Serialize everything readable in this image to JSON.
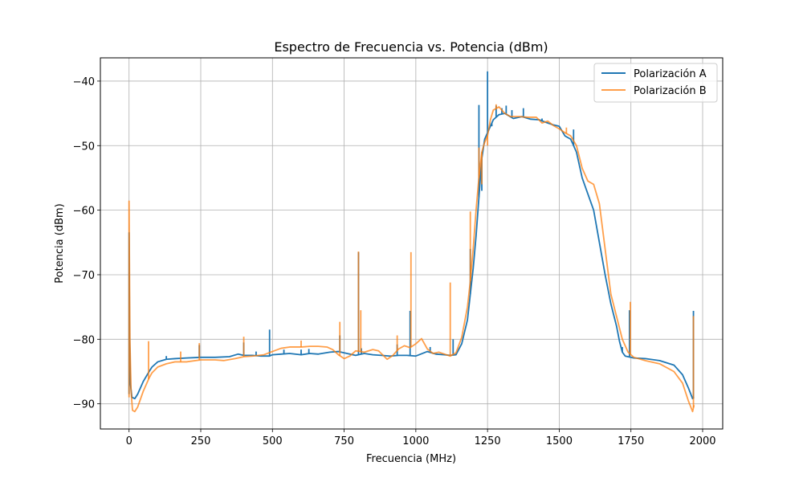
{
  "chart_data": {
    "type": "line",
    "title": "Espectro de Frecuencia vs. Potencia (dBm)",
    "xlabel": "Frecuencia (MHz)",
    "ylabel": "Potencia (dBm)",
    "xlim": [
      -100,
      2070
    ],
    "ylim": [
      -93.9,
      -36.4
    ],
    "xticks": [
      0,
      250,
      500,
      750,
      1000,
      1250,
      1500,
      1750,
      2000
    ],
    "yticks": [
      -90,
      -80,
      -70,
      -60,
      -50,
      -40
    ],
    "xtick_labels": [
      "0",
      "250",
      "500",
      "750",
      "1000",
      "1250",
      "1500",
      "1750",
      "2000"
    ],
    "ytick_labels": [
      "−90",
      "−80",
      "−70",
      "−60",
      "−50",
      "−40"
    ],
    "grid": true,
    "legend_position": "top-right",
    "series": [
      {
        "name": "Polarización A",
        "color": "#1f77b4",
        "opacity": 1.0,
        "points": [
          [
            0,
            -88.5
          ],
          [
            0,
            -63.5
          ],
          [
            2,
            -80
          ],
          [
            5,
            -87
          ],
          [
            10,
            -89
          ],
          [
            20,
            -89.2
          ],
          [
            30,
            -88.5
          ],
          [
            50,
            -86.5
          ],
          [
            70,
            -85
          ],
          [
            80,
            -84.3
          ],
          [
            100,
            -83.5
          ],
          [
            130,
            -83.1
          ],
          [
            160,
            -83
          ],
          [
            200,
            -82.9
          ],
          [
            250,
            -82.8
          ],
          [
            300,
            -82.8
          ],
          [
            350,
            -82.7
          ],
          [
            380,
            -82.3
          ],
          [
            400,
            -82.5
          ],
          [
            430,
            -82.5
          ],
          [
            460,
            -82.6
          ],
          [
            490,
            -82.6
          ],
          [
            500,
            -82.4
          ],
          [
            530,
            -82.3
          ],
          [
            560,
            -82.2
          ],
          [
            600,
            -82.4
          ],
          [
            630,
            -82.2
          ],
          [
            660,
            -82.3
          ],
          [
            700,
            -82
          ],
          [
            730,
            -81.9
          ],
          [
            760,
            -82.2
          ],
          [
            790,
            -82.5
          ],
          [
            820,
            -82.2
          ],
          [
            850,
            -82.4
          ],
          [
            880,
            -82.5
          ],
          [
            910,
            -82.6
          ],
          [
            940,
            -82.5
          ],
          [
            970,
            -82.5
          ],
          [
            1000,
            -82.6
          ],
          [
            1040,
            -81.9
          ],
          [
            1070,
            -82.3
          ],
          [
            1100,
            -82.4
          ],
          [
            1120,
            -82.5
          ],
          [
            1140,
            -82.4
          ],
          [
            1160,
            -80.7
          ],
          [
            1180,
            -77
          ],
          [
            1190,
            -73
          ],
          [
            1200,
            -69
          ],
          [
            1210,
            -64
          ],
          [
            1220,
            -58
          ],
          [
            1230,
            -52
          ],
          [
            1240,
            -49
          ],
          [
            1250,
            -48
          ],
          [
            1260,
            -47
          ],
          [
            1270,
            -46
          ],
          [
            1290,
            -45.2
          ],
          [
            1310,
            -45
          ],
          [
            1340,
            -45.8
          ],
          [
            1370,
            -45.5
          ],
          [
            1400,
            -45.9
          ],
          [
            1430,
            -46
          ],
          [
            1460,
            -46.5
          ],
          [
            1480,
            -46.8
          ],
          [
            1500,
            -47
          ],
          [
            1520,
            -48.5
          ],
          [
            1540,
            -49
          ],
          [
            1560,
            -51
          ],
          [
            1580,
            -55
          ],
          [
            1600,
            -57.5
          ],
          [
            1620,
            -60
          ],
          [
            1640,
            -65
          ],
          [
            1660,
            -70
          ],
          [
            1680,
            -74.5
          ],
          [
            1700,
            -78
          ],
          [
            1710,
            -80.3
          ],
          [
            1720,
            -82
          ],
          [
            1730,
            -82.6
          ],
          [
            1760,
            -82.9
          ],
          [
            1800,
            -83
          ],
          [
            1850,
            -83.3
          ],
          [
            1900,
            -84
          ],
          [
            1930,
            -85.5
          ],
          [
            1950,
            -87.5
          ],
          [
            1965,
            -89.2
          ],
          [
            1970,
            -89
          ]
        ],
        "spikes": [
          [
            130,
            -82.6
          ],
          [
            245,
            -80.9
          ],
          [
            400,
            -80.5
          ],
          [
            443,
            -81.9
          ],
          [
            490,
            -78.5
          ],
          [
            540,
            -81.6
          ],
          [
            600,
            -81.6
          ],
          [
            627,
            -81.5
          ],
          [
            735,
            -79.4
          ],
          [
            800,
            -66.5
          ],
          [
            810,
            -81.4
          ],
          [
            935,
            -80.8
          ],
          [
            980,
            -75.6
          ],
          [
            1050,
            -81.2
          ],
          [
            1130,
            -80
          ],
          [
            1190,
            -66
          ],
          [
            1220,
            -43.7
          ],
          [
            1230,
            -57
          ],
          [
            1250,
            -38.5
          ],
          [
            1265,
            -47
          ],
          [
            1280,
            -43.8
          ],
          [
            1300,
            -44.2
          ],
          [
            1315,
            -43.8
          ],
          [
            1335,
            -44.5
          ],
          [
            1375,
            -44.2
          ],
          [
            1440,
            -45.8
          ],
          [
            1550,
            -47.5
          ],
          [
            1720,
            -81.2
          ],
          [
            1745,
            -75.5
          ],
          [
            1968,
            -75.6
          ]
        ]
      },
      {
        "name": "Polarización B",
        "color": "#ff7f0e",
        "opacity": 0.75,
        "points": [
          [
            0,
            -89
          ],
          [
            0,
            -58.6
          ],
          [
            3,
            -80
          ],
          [
            7,
            -88
          ],
          [
            12,
            -91
          ],
          [
            20,
            -91.2
          ],
          [
            30,
            -90.5
          ],
          [
            50,
            -88
          ],
          [
            70,
            -86
          ],
          [
            80,
            -85.2
          ],
          [
            100,
            -84.3
          ],
          [
            130,
            -83.8
          ],
          [
            160,
            -83.5
          ],
          [
            200,
            -83.5
          ],
          [
            250,
            -83.2
          ],
          [
            300,
            -83.2
          ],
          [
            330,
            -83.3
          ],
          [
            370,
            -83
          ],
          [
            400,
            -82.7
          ],
          [
            430,
            -82.6
          ],
          [
            470,
            -82.4
          ],
          [
            500,
            -81.9
          ],
          [
            530,
            -81.4
          ],
          [
            560,
            -81.2
          ],
          [
            600,
            -81.2
          ],
          [
            630,
            -81.1
          ],
          [
            660,
            -81.1
          ],
          [
            690,
            -81.2
          ],
          [
            710,
            -81.6
          ],
          [
            730,
            -82.4
          ],
          [
            750,
            -83
          ],
          [
            770,
            -82.6
          ],
          [
            790,
            -81.8
          ],
          [
            820,
            -82
          ],
          [
            850,
            -81.6
          ],
          [
            870,
            -81.8
          ],
          [
            900,
            -83.1
          ],
          [
            920,
            -82.5
          ],
          [
            940,
            -81.5
          ],
          [
            960,
            -81
          ],
          [
            980,
            -81.3
          ],
          [
            1000,
            -80.7
          ],
          [
            1020,
            -79.9
          ],
          [
            1040,
            -81.5
          ],
          [
            1060,
            -82.2
          ],
          [
            1080,
            -82
          ],
          [
            1100,
            -82.3
          ],
          [
            1120,
            -82.6
          ],
          [
            1140,
            -82.1
          ],
          [
            1160,
            -79.7
          ],
          [
            1180,
            -75
          ],
          [
            1190,
            -71
          ],
          [
            1200,
            -66
          ],
          [
            1210,
            -60
          ],
          [
            1220,
            -55
          ],
          [
            1230,
            -51
          ],
          [
            1240,
            -49.5
          ],
          [
            1250,
            -48.5
          ],
          [
            1260,
            -46
          ],
          [
            1270,
            -44.5
          ],
          [
            1290,
            -44
          ],
          [
            1310,
            -45
          ],
          [
            1330,
            -45.5
          ],
          [
            1360,
            -45.5
          ],
          [
            1390,
            -45.6
          ],
          [
            1420,
            -45.6
          ],
          [
            1440,
            -46.5
          ],
          [
            1460,
            -46.2
          ],
          [
            1480,
            -46.9
          ],
          [
            1500,
            -47.4
          ],
          [
            1520,
            -48
          ],
          [
            1540,
            -48.5
          ],
          [
            1560,
            -50
          ],
          [
            1580,
            -53.5
          ],
          [
            1600,
            -55.5
          ],
          [
            1620,
            -56
          ],
          [
            1640,
            -59
          ],
          [
            1660,
            -66
          ],
          [
            1680,
            -73
          ],
          [
            1700,
            -76.5
          ],
          [
            1720,
            -80
          ],
          [
            1740,
            -82
          ],
          [
            1760,
            -82.8
          ],
          [
            1800,
            -83.3
          ],
          [
            1850,
            -83.8
          ],
          [
            1900,
            -85
          ],
          [
            1930,
            -86.8
          ],
          [
            1950,
            -89.5
          ],
          [
            1965,
            -91.2
          ],
          [
            1970,
            -90.2
          ]
        ],
        "spikes": [
          [
            68,
            -80.3
          ],
          [
            180,
            -81.9
          ],
          [
            245,
            -80.6
          ],
          [
            400,
            -79.6
          ],
          [
            600,
            -80.2
          ],
          [
            735,
            -77.3
          ],
          [
            800,
            -66.4
          ],
          [
            808,
            -75.5
          ],
          [
            935,
            -79.4
          ],
          [
            983,
            -66.5
          ],
          [
            1120,
            -71.2
          ],
          [
            1190,
            -60.2
          ],
          [
            1220,
            -50.3
          ],
          [
            1230,
            -56
          ],
          [
            1250,
            -50
          ],
          [
            1280,
            -43.6
          ],
          [
            1290,
            -44.1
          ],
          [
            1525,
            -47.2
          ],
          [
            1748,
            -74.2
          ],
          [
            1968,
            -76.4
          ]
        ]
      }
    ]
  }
}
